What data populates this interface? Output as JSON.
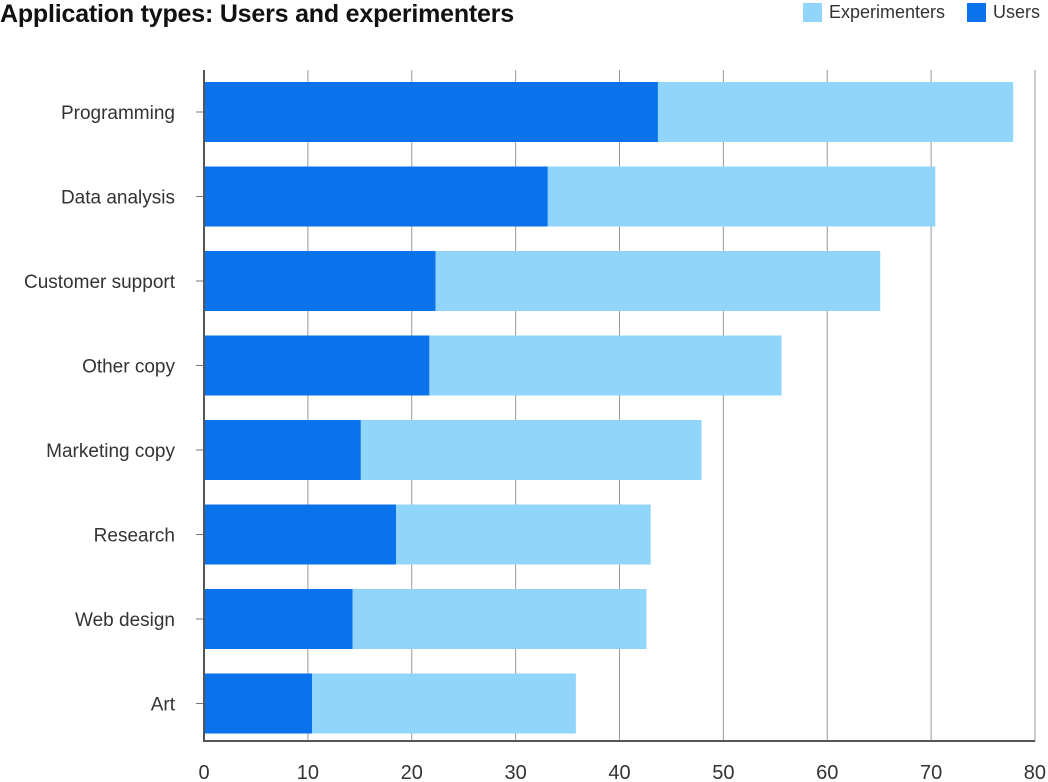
{
  "chart_data": {
    "type": "bar",
    "orientation": "horizontal",
    "stacked": true,
    "title": "Application types: Users and experimenters",
    "xlabel": "",
    "ylabel": "",
    "xlim": [
      0,
      80
    ],
    "xticks": [
      0,
      10,
      20,
      30,
      40,
      50,
      60,
      70,
      80
    ],
    "xtick_labels": [
      "0",
      "10",
      "20",
      "30",
      "40",
      "50",
      "60",
      "70",
      "80"
    ],
    "grid": "vertical",
    "legend_position": "top-right",
    "categories": [
      "Programming",
      "Data analysis",
      "Customer support",
      "Other copy",
      "Marketing copy",
      "Research",
      "Web design",
      "Art"
    ],
    "series": [
      {
        "name": "Users",
        "color": "#0A72EA",
        "values": [
          43.7,
          33.1,
          22.3,
          21.7,
          15.1,
          18.5,
          14.3,
          10.4
        ]
      },
      {
        "name": "Experimenters",
        "color": "#91D5FB",
        "values": [
          34.2,
          37.3,
          42.8,
          33.9,
          32.8,
          24.5,
          28.3,
          25.4
        ]
      }
    ]
  }
}
